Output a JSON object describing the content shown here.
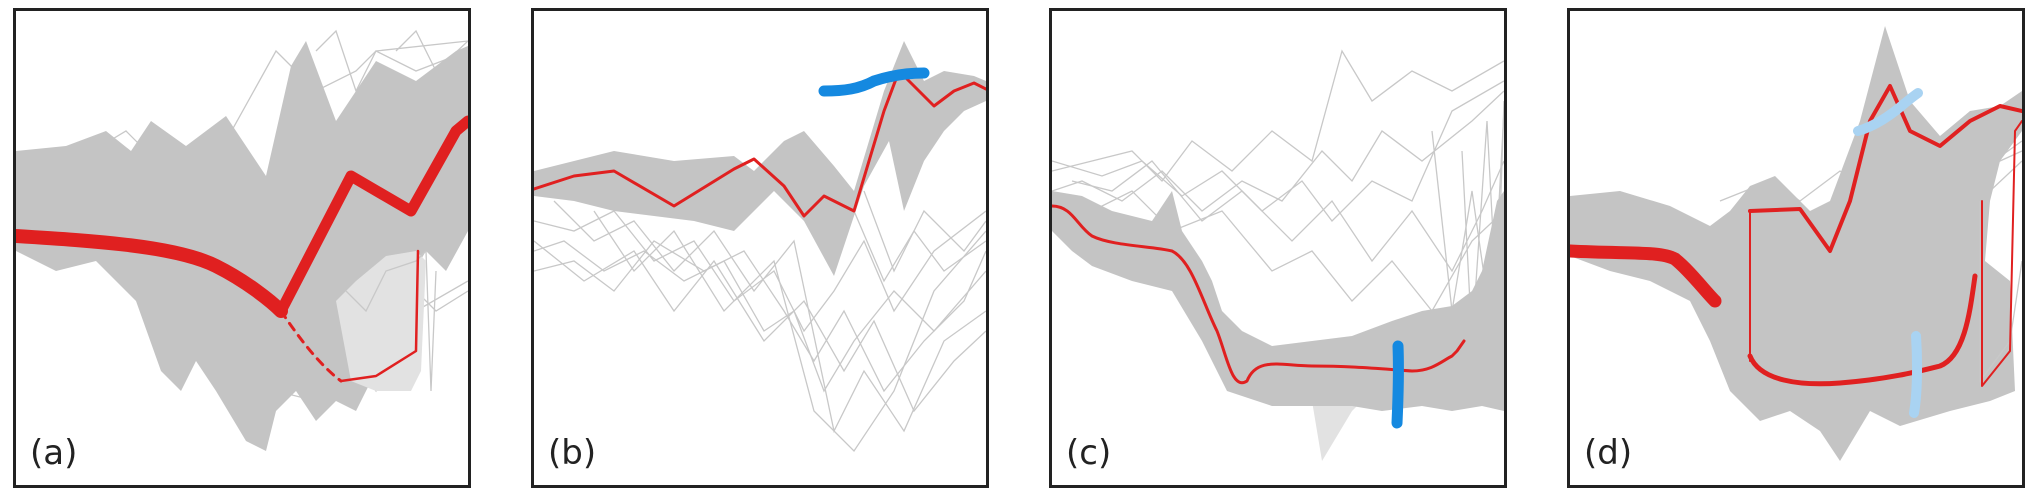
{
  "panels": [
    {
      "label": "(a)"
    },
    {
      "label": "(b)"
    },
    {
      "label": "(c)"
    },
    {
      "label": "(d)"
    }
  ],
  "colors": {
    "band": "#c4c4c4",
    "thin_lines": "#c8c8c8",
    "highlight": "#e02020",
    "brush_dark": "#1589e0",
    "brush_light": "#a9d3f2",
    "frame": "#222222"
  }
}
